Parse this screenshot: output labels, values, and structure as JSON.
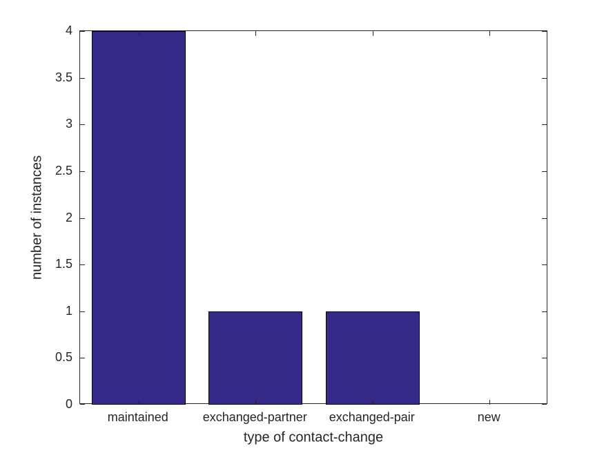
{
  "chart_data": {
    "type": "bar",
    "title": "",
    "categories": [
      "maintained",
      "exchanged-partner",
      "exchanged-pair",
      "new"
    ],
    "values": [
      4,
      1,
      1,
      0
    ],
    "xlabel": "type of contact-change",
    "ylabel": "number of instances",
    "ylim": [
      0,
      4
    ],
    "yticks": [
      0,
      0.5,
      1,
      1.5,
      2,
      2.5,
      3,
      3.5,
      4
    ],
    "ytick_labels": [
      "0",
      "0.5",
      "1",
      "1.5",
      "2",
      "2.5",
      "3",
      "3.5",
      "4"
    ],
    "bar_width_fraction": 0.8,
    "grid": false,
    "legend": "none",
    "colors": {
      "bar_fill": "#352A87",
      "bar_edge": "#000000",
      "axis": "#262626",
      "text": "#262626",
      "background": "#FFFFFF"
    }
  }
}
